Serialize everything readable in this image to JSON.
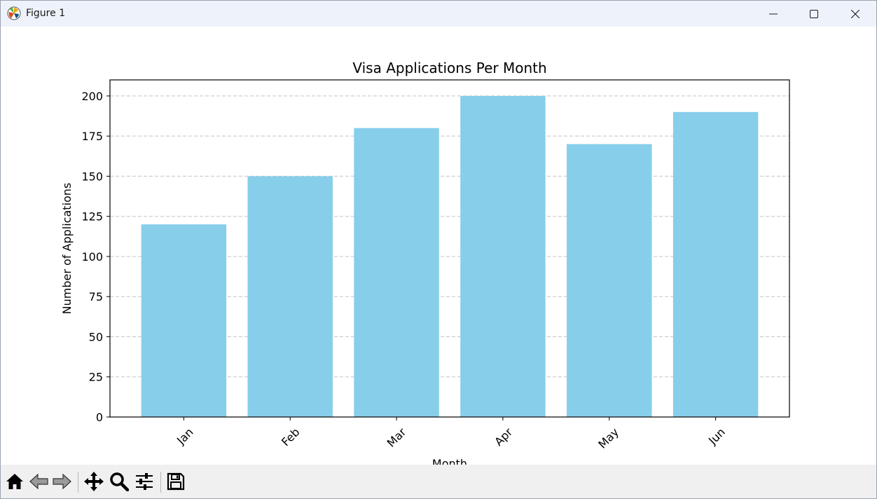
{
  "window": {
    "title": "Figure 1",
    "app_icon": "matplotlib-logo-icon",
    "controls": [
      "minimize-icon",
      "maximize-icon",
      "close-icon"
    ]
  },
  "toolbar": {
    "tools": [
      "home-icon",
      "back-arrow-icon",
      "forward-arrow-icon",
      "pan-move-icon",
      "zoom-magnifier-icon",
      "configure-subplots-icon",
      "save-floppy-icon"
    ]
  },
  "colors": {
    "bar": "#87ceeb",
    "grid": "#c4c4c4",
    "axis": "#000000",
    "titlebar": "#eef2fa",
    "toolbar": "#f0f0f0"
  },
  "chart_data": {
    "type": "bar",
    "title": "Visa Applications Per Month",
    "xlabel": "Month",
    "ylabel": "Number of Applications",
    "categories": [
      "Jan",
      "Feb",
      "Mar",
      "Apr",
      "May",
      "Jun"
    ],
    "values": [
      120,
      150,
      180,
      200,
      170,
      190
    ],
    "ylim": [
      0,
      210
    ],
    "yticks": [
      0,
      25,
      50,
      75,
      100,
      125,
      150,
      175,
      200
    ],
    "xtick_rotation_deg": 45,
    "grid": "y-axis dashed",
    "legend": "none"
  }
}
